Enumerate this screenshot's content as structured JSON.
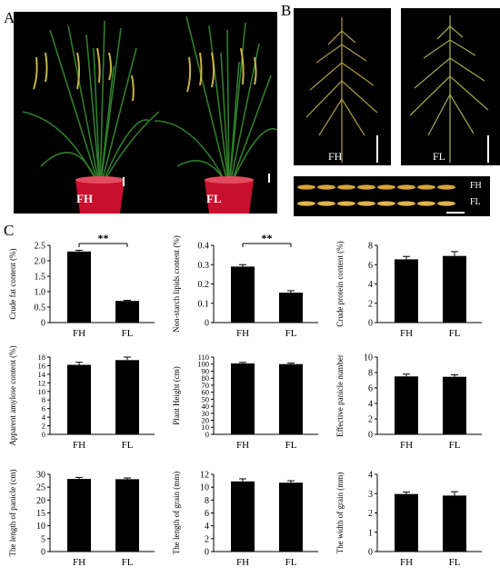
{
  "panel_labels": {
    "a": "A",
    "b": "B",
    "c": "C"
  },
  "panel_a": {
    "left_pot_label": "FH",
    "right_pot_label": "FL"
  },
  "panel_b": {
    "panicle_left_label": "FH",
    "panicle_right_label": "FL",
    "grain_top_label": "FH",
    "grain_bottom_label": "FL"
  },
  "chart_data": [
    {
      "type": "bar",
      "categories": [
        "FH",
        "FL"
      ],
      "values": [
        2.3,
        0.7
      ],
      "errors": [
        0.04,
        0.02
      ],
      "ylabel": "Crude fat content (%)",
      "ylim": [
        0,
        2.5
      ],
      "yticks": [
        "0",
        "0.5",
        "1.0",
        "1.5",
        "2.0",
        "2.5"
      ],
      "significance": "**"
    },
    {
      "type": "bar",
      "categories": [
        "FH",
        "FL"
      ],
      "values": [
        0.29,
        0.155
      ],
      "errors": [
        0.01,
        0.01
      ],
      "ylabel": "Non-starch lipids content  (%)",
      "ylim": [
        0,
        0.4
      ],
      "yticks": [
        "0",
        "0.1",
        "0.2",
        "0.3",
        "0.4"
      ],
      "significance": "**"
    },
    {
      "type": "bar",
      "categories": [
        "FH",
        "FL"
      ],
      "values": [
        6.55,
        6.9
      ],
      "errors": [
        0.3,
        0.45
      ],
      "ylabel": "Crude protein content (%)",
      "ylim": [
        0,
        8
      ],
      "yticks": [
        "0",
        "2",
        "4",
        "6",
        "8"
      ],
      "significance": ""
    },
    {
      "type": "bar",
      "categories": [
        "FH",
        "FL"
      ],
      "values": [
        16.2,
        17.3
      ],
      "errors": [
        0.6,
        0.7
      ],
      "ylabel": "Apparent amylose content (%)",
      "ylim": [
        0,
        18
      ],
      "yticks": [
        "0",
        "2",
        "4",
        "6",
        "8",
        "10",
        "12",
        "14",
        "16",
        "18"
      ],
      "significance": ""
    },
    {
      "type": "bar",
      "categories": [
        "FH",
        "FL"
      ],
      "values": [
        101,
        100
      ],
      "errors": [
        1.5,
        1.5
      ],
      "ylabel": "Plant Height (cm)",
      "ylim": [
        0,
        110
      ],
      "yticks": [
        "0",
        "10",
        "20",
        "30",
        "40",
        "50",
        "60",
        "70",
        "80",
        "90",
        "100",
        "110"
      ],
      "significance": ""
    },
    {
      "type": "bar",
      "categories": [
        "FH",
        "FL"
      ],
      "values": [
        7.5,
        7.45
      ],
      "errors": [
        0.3,
        0.25
      ],
      "ylabel": "Effective panicle number",
      "ylim": [
        0,
        10
      ],
      "yticks": [
        "0",
        "2",
        "4",
        "6",
        "8",
        "10"
      ],
      "significance": ""
    },
    {
      "type": "bar",
      "categories": [
        "FH",
        "FL"
      ],
      "values": [
        28.2,
        28.1
      ],
      "errors": [
        0.6,
        0.5
      ],
      "ylabel": "The length of panicle (cm)",
      "ylim": [
        0,
        30
      ],
      "yticks": [
        "0",
        "5",
        "10",
        "15",
        "20",
        "25",
        "30"
      ],
      "significance": ""
    },
    {
      "type": "bar",
      "categories": [
        "FH",
        "FL"
      ],
      "values": [
        10.9,
        10.7
      ],
      "errors": [
        0.4,
        0.3
      ],
      "ylabel": "The length of grain (mm)",
      "ylim": [
        0,
        12
      ],
      "yticks": [
        "0",
        "2",
        "4",
        "6",
        "8",
        "10",
        "12"
      ],
      "significance": ""
    },
    {
      "type": "bar",
      "categories": [
        "FH",
        "FL"
      ],
      "values": [
        2.98,
        2.9
      ],
      "errors": [
        0.1,
        0.2
      ],
      "ylabel": "The width of grain (mm)",
      "ylim": [
        0,
        4
      ],
      "yticks": [
        "0",
        "1",
        "2",
        "3",
        "4"
      ],
      "significance": ""
    }
  ]
}
